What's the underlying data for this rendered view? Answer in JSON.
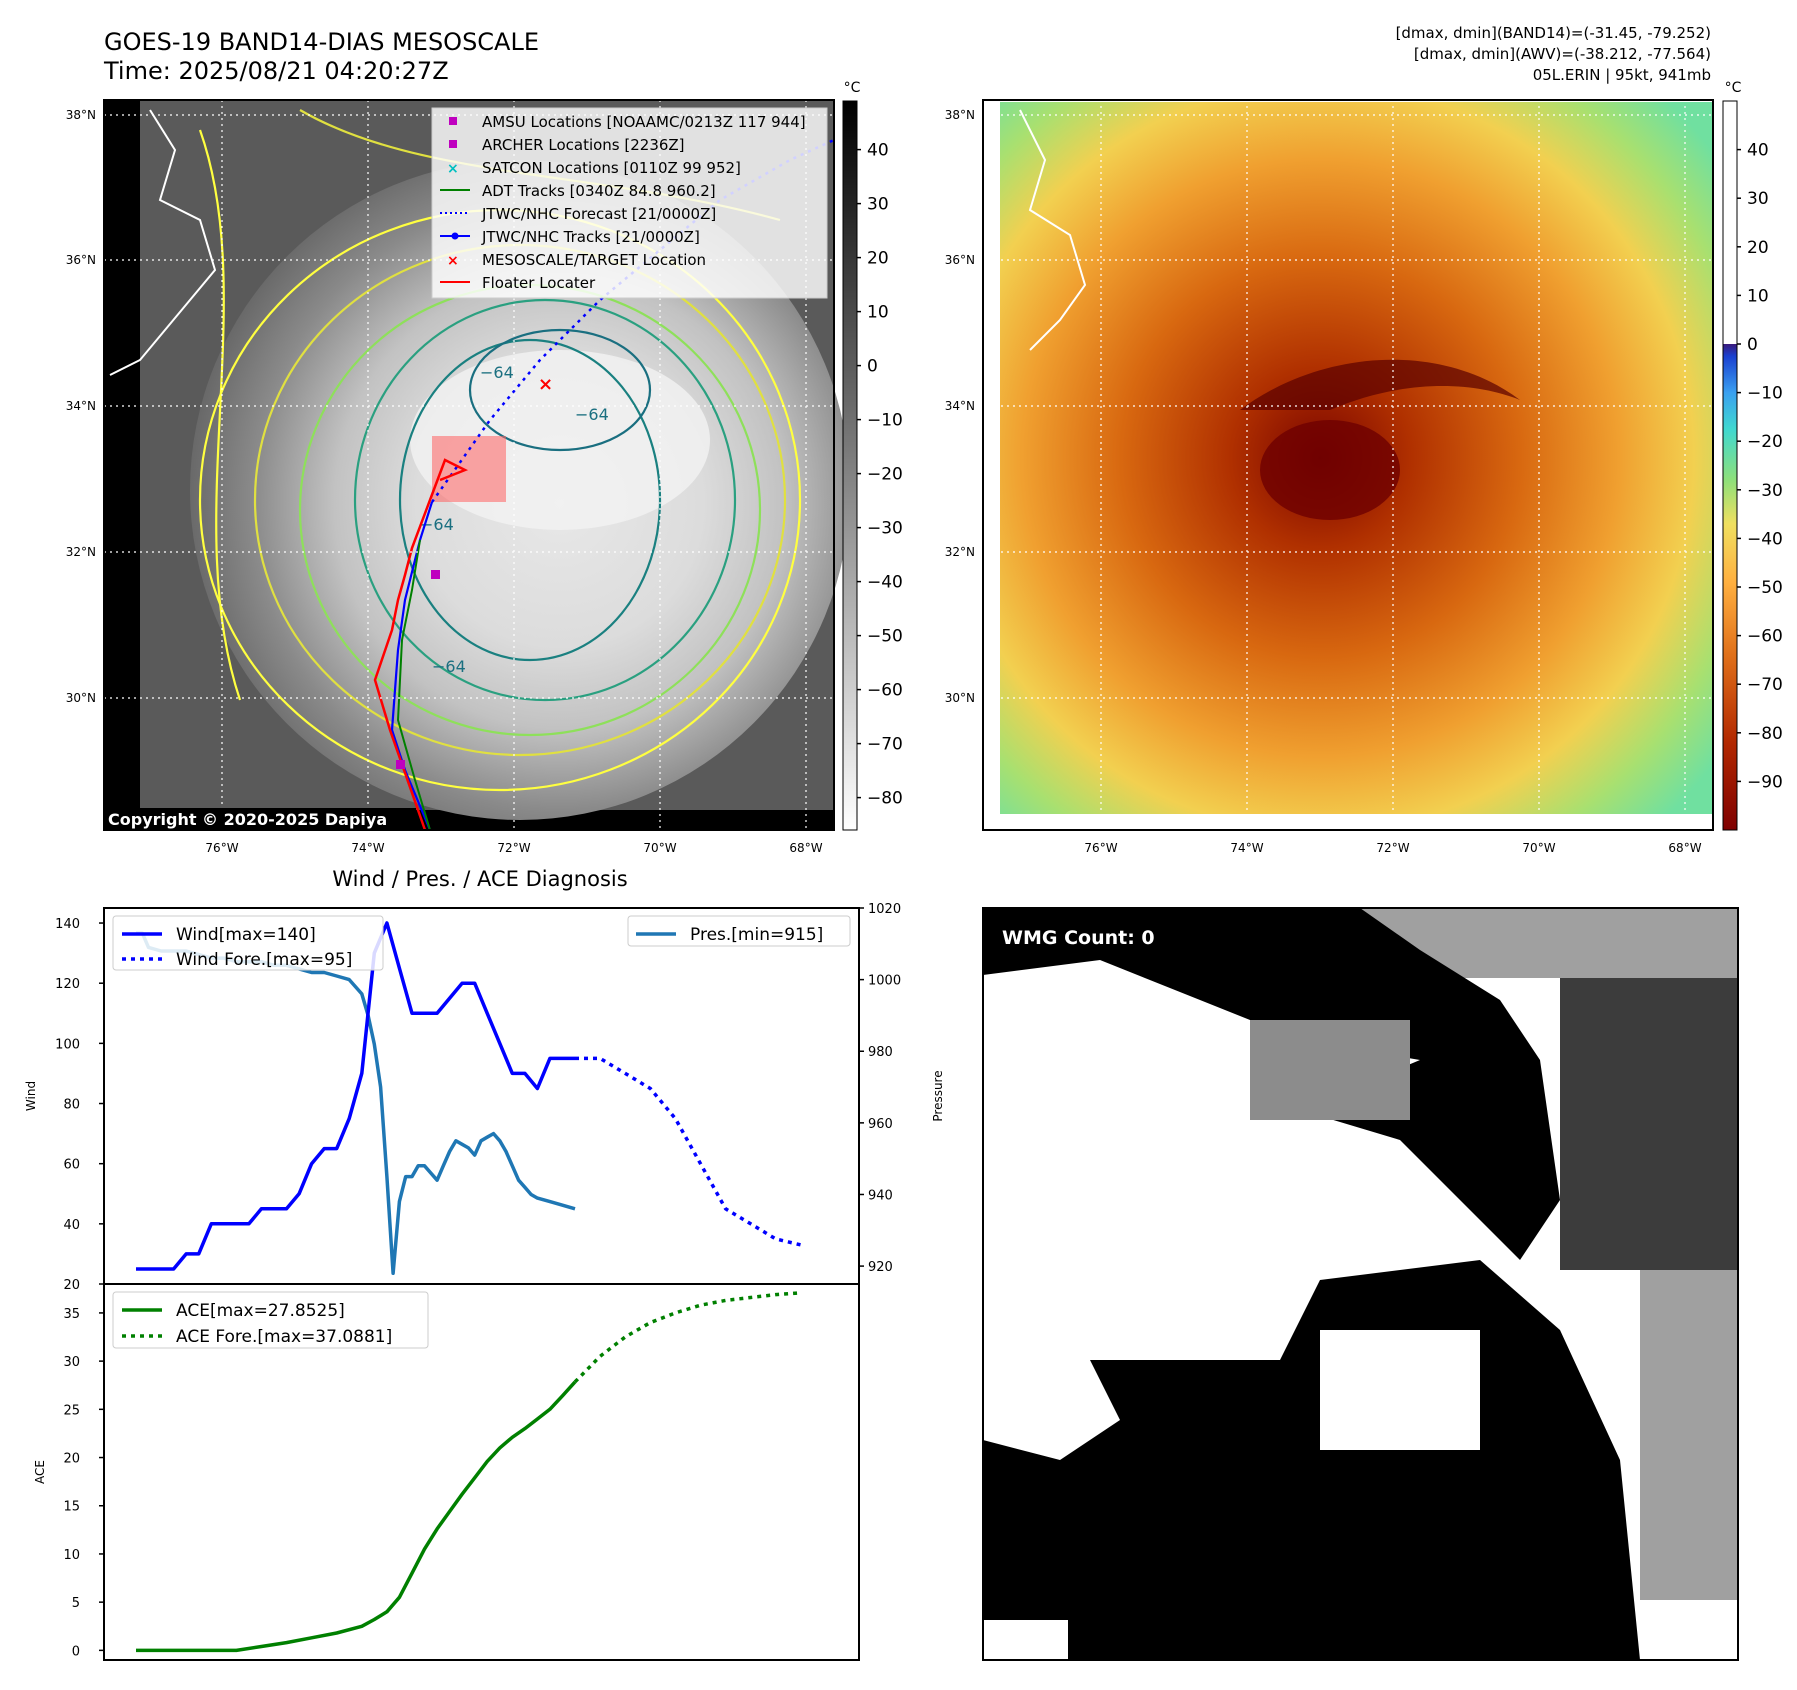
{
  "header": {
    "title": "GOES-19 BAND14-DIAS MESOSCALE",
    "time": "Time: 2025/08/21 04:20:27Z",
    "info_band14": "[dmax, dmin](BAND14)=(-31.45, -79.252)",
    "info_awv": "[dmax, dmin](AWV)=(-38.212, -77.564)",
    "storm": "05L.ERIN | 95kt, 941mb"
  },
  "map_common": {
    "lat_labels": [
      "38°N",
      "36°N",
      "34°N",
      "32°N",
      "30°N"
    ],
    "lon_labels": [
      "76°W",
      "74°W",
      "72°W",
      "70°W",
      "68°W"
    ],
    "lat_values": [
      38,
      36,
      34,
      32,
      30
    ],
    "lon_values": [
      -76,
      -74,
      -72,
      -70,
      -68
    ],
    "lat_range": [
      28.2,
      38.2
    ],
    "lon_range": [
      -77.6,
      -67.6
    ]
  },
  "ir_map": {
    "copyright": "Copyright © 2020-2025 Dapiya",
    "contour_label": "−64",
    "colorbar": {
      "unit": "°C",
      "ticks": [
        "40",
        "30",
        "20",
        "10",
        "0",
        "−10",
        "−20",
        "−30",
        "−40",
        "−50",
        "−60",
        "−70",
        "−80"
      ],
      "tick_values": [
        40,
        30,
        20,
        10,
        0,
        -10,
        -20,
        -30,
        -40,
        -50,
        -60,
        -70,
        -80
      ],
      "range": [
        -86,
        49
      ]
    },
    "legend": [
      {
        "label": "AMSU Locations [NOAAMC/0213Z 117 944]",
        "marker": "square",
        "color": "#bf00bf"
      },
      {
        "label": "ARCHER Locations [2236Z]",
        "marker": "square",
        "color": "#bf00bf"
      },
      {
        "label": "SATCON Locations [0110Z 99 952]",
        "marker": "x",
        "color": "#00bfbf"
      },
      {
        "label": "ADT Tracks [0340Z 84.8 960.2]",
        "marker": "line",
        "color": "#008000"
      },
      {
        "label": "JTWC/NHC Forecast [21/0000Z]",
        "marker": "dotted",
        "color": "#0000ff"
      },
      {
        "label": "JTWC/NHC Tracks [21/0000Z]",
        "marker": "line-dot",
        "color": "#0000ff"
      },
      {
        "label": "MESOSCALE/TARGET Location",
        "marker": "x",
        "color": "#ff0000"
      },
      {
        "label": "Floater Locater",
        "marker": "line",
        "color": "#ff0000"
      }
    ]
  },
  "awv_map": {
    "colorbar": {
      "unit": "°C",
      "ticks": [
        "40",
        "30",
        "20",
        "10",
        "0",
        "−10",
        "−20",
        "−30",
        "−40",
        "−50",
        "−60",
        "−70",
        "−80",
        "−90"
      ],
      "tick_values": [
        40,
        30,
        20,
        10,
        0,
        -10,
        -20,
        -30,
        -40,
        -50,
        -60,
        -70,
        -80,
        -90
      ],
      "range": [
        -100,
        50
      ]
    }
  },
  "wmg": {
    "badge": "WMG Count: 0"
  },
  "chart_data": [
    {
      "type": "line",
      "title": "Wind / Pres. / ACE Diagnosis",
      "ylabel": "Wind",
      "y2label": "Pressure",
      "ylim": [
        20,
        145
      ],
      "y2lim": [
        915,
        1020
      ],
      "yticks": [
        20,
        40,
        60,
        80,
        100,
        120,
        140
      ],
      "y2ticks": [
        920,
        940,
        960,
        980,
        1000,
        1020
      ],
      "x": [
        0,
        2,
        4,
        6,
        8,
        10,
        12,
        14,
        16,
        18,
        20,
        22,
        24,
        26,
        28,
        30,
        32,
        34,
        36,
        38,
        40,
        42,
        44,
        46,
        48,
        50,
        52,
        54,
        56,
        58,
        60,
        62,
        64,
        66,
        68,
        70
      ],
      "series": [
        {
          "name": "Wind[max=140]",
          "color": "#0000ff",
          "style": "solid",
          "x": [
            0,
            2,
            4,
            6,
            8,
            10,
            12,
            14,
            16,
            18,
            20,
            22,
            24,
            26,
            28,
            30,
            32,
            34,
            36,
            38,
            40,
            42,
            44,
            46,
            48,
            50,
            52,
            54,
            56,
            58,
            60,
            62,
            64,
            66,
            68,
            70
          ],
          "values": [
            25,
            25,
            25,
            25,
            30,
            30,
            40,
            40,
            40,
            40,
            45,
            45,
            45,
            50,
            60,
            65,
            65,
            75,
            90,
            130,
            140,
            125,
            110,
            110,
            110,
            115,
            120,
            120,
            110,
            100,
            90,
            90,
            85,
            95,
            95,
            95
          ]
        },
        {
          "name": "Wind Fore.[max=95]",
          "color": "#0000ff",
          "style": "dotted",
          "x": [
            70,
            74,
            78,
            82,
            86,
            90,
            94,
            98,
            102,
            106
          ],
          "values": [
            95,
            95,
            90,
            85,
            75,
            60,
            45,
            40,
            35,
            33
          ]
        },
        {
          "name": "Pres.[min=915]",
          "color": "#1f77b4",
          "style": "solid",
          "axis": "right",
          "x": [
            0,
            1,
            2,
            4,
            6,
            8,
            10,
            12,
            14,
            16,
            18,
            20,
            22,
            24,
            26,
            28,
            30,
            32,
            34,
            36,
            37,
            38,
            39,
            40,
            41,
            42,
            43,
            44,
            45,
            46,
            47,
            48,
            49,
            50,
            51,
            52,
            53,
            54,
            55,
            56,
            57,
            58,
            59,
            60,
            61,
            62,
            63,
            64,
            66,
            68,
            70
          ],
          "values": [
            1013,
            1013,
            1009,
            1008,
            1008,
            1008,
            1007,
            1006,
            1006,
            1005,
            1005,
            1005,
            1004,
            1004,
            1003,
            1002,
            1002,
            1001,
            1000,
            996,
            990,
            982,
            970,
            945,
            918,
            938,
            945,
            945,
            948,
            948,
            946,
            944,
            948,
            952,
            955,
            954,
            953,
            951,
            955,
            956,
            957,
            955,
            952,
            948,
            944,
            942,
            940,
            939,
            938,
            937,
            936
          ]
        }
      ]
    },
    {
      "type": "line",
      "ylabel": "ACE",
      "ylim": [
        -1,
        38
      ],
      "yticks": [
        0,
        5,
        10,
        15,
        20,
        25,
        30,
        35
      ],
      "series": [
        {
          "name": "ACE[max=27.8525]",
          "color": "#008000",
          "style": "solid",
          "x": [
            0,
            4,
            8,
            12,
            16,
            20,
            24,
            28,
            32,
            36,
            38,
            40,
            42,
            44,
            46,
            48,
            50,
            52,
            54,
            56,
            58,
            60,
            62,
            64,
            66,
            68,
            70
          ],
          "values": [
            0,
            0,
            0,
            0,
            0,
            0.4,
            0.8,
            1.3,
            1.8,
            2.5,
            3.2,
            4,
            5.5,
            8,
            10.5,
            12.6,
            14.4,
            16.2,
            17.9,
            19.6,
            21.0,
            22.1,
            23.0,
            24.0,
            25.0,
            26.4,
            27.85
          ]
        },
        {
          "name": "ACE Fore.[max=37.0881]",
          "color": "#008000",
          "style": "dotted",
          "x": [
            70,
            74,
            78,
            82,
            86,
            90,
            94,
            98,
            102,
            106
          ],
          "values": [
            27.85,
            30.5,
            32.5,
            34.0,
            35.0,
            35.8,
            36.3,
            36.6,
            36.9,
            37.09
          ]
        }
      ]
    }
  ]
}
